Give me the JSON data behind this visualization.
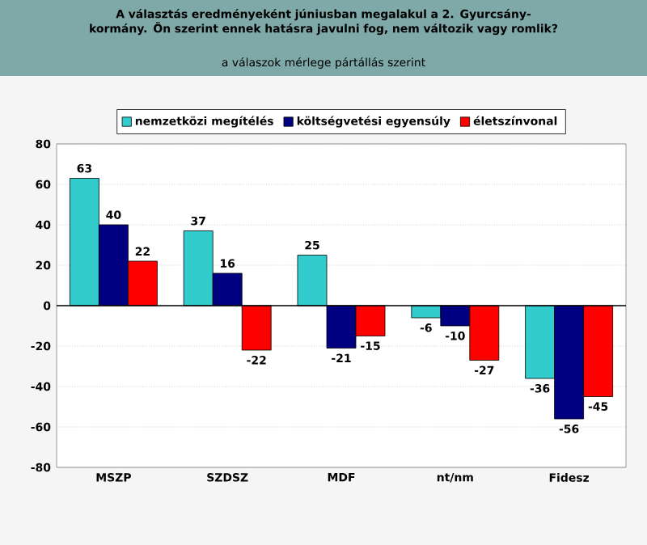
{
  "chart_data": {
    "type": "bar",
    "title": "A választás eredményeként júniusban megalakul a 2. Gyurcsány-kormány. Ön szerint ennek hatásra javulni fog, nem változik vagy romlik?",
    "subtitle": "a válaszok mérlege pártállás szerint",
    "categories": [
      "MSZP",
      "SZDSZ",
      "MDF",
      "nt/nm",
      "Fidesz"
    ],
    "series": [
      {
        "name": "nemzetközi megítélés",
        "color": "#33cccc",
        "values": [
          63,
          37,
          25,
          -6,
          -36
        ]
      },
      {
        "name": "költségvetési egyensúly",
        "color": "#000080",
        "values": [
          40,
          16,
          -21,
          -10,
          -56
        ]
      },
      {
        "name": "életszínvonal",
        "color": "#ff0000",
        "values": [
          22,
          -22,
          -15,
          -27,
          -45
        ]
      }
    ],
    "ylim": [
      -80,
      80
    ],
    "yticks": [
      -80,
      -60,
      -40,
      -20,
      0,
      20,
      40,
      60,
      80
    ],
    "ref_lines": [
      {
        "axis": "y",
        "value": 0,
        "color": "#000000"
      }
    ],
    "grid": "y",
    "legend": "top",
    "data_labels": true
  }
}
